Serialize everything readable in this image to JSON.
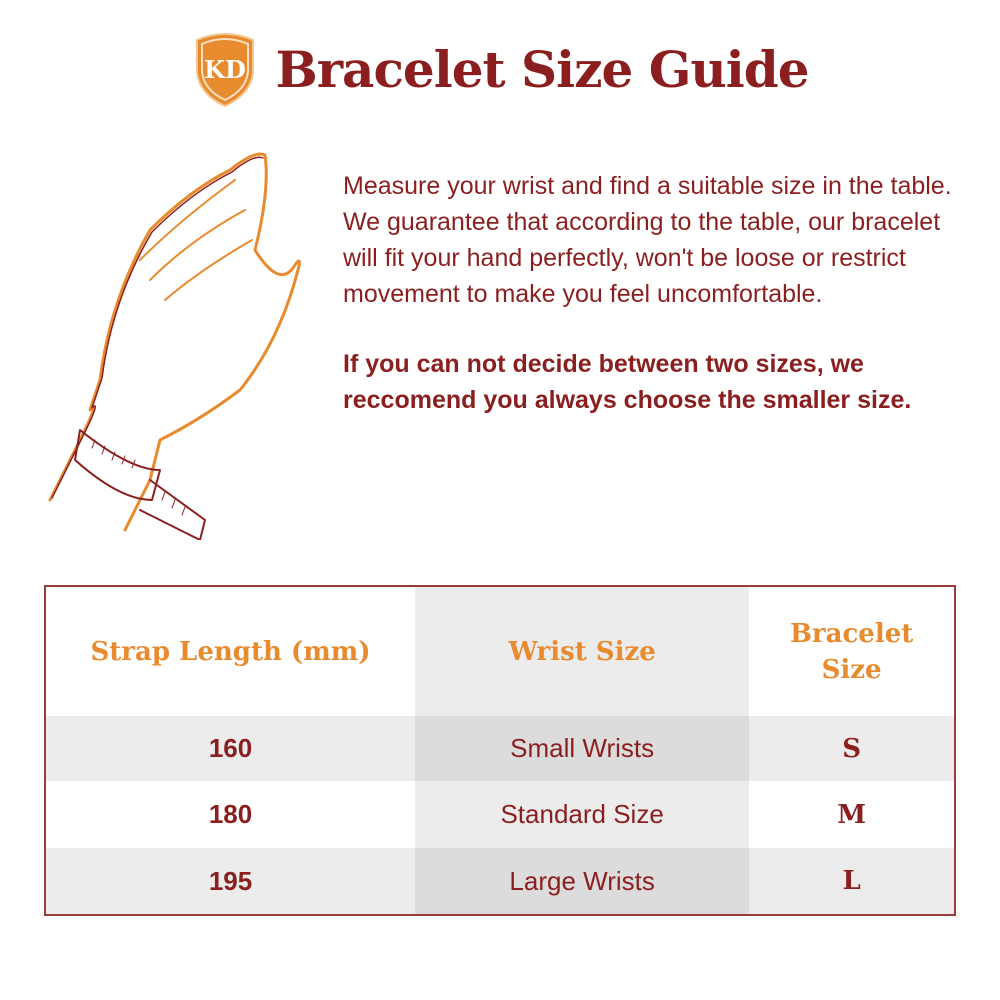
{
  "header": {
    "logo_text": "KD",
    "title": "Bracelet Size Guide"
  },
  "colors": {
    "brand_red": "#8b1f1f",
    "accent_orange": "#e88a2e"
  },
  "illustration": {
    "icon": "hand-with-measuring-tape-icon"
  },
  "description": {
    "line1": "Measure your wrist and find a suitable size in the table.",
    "line2": "We guarantee that according to the table, our bracelet will fit your hand perfectly, won't be loose or restrict movement to make you feel uncomfortable.",
    "advice": "If you can not decide between two sizes, we reccomend you always choose the smaller size."
  },
  "table": {
    "headers": [
      "Strap Length (mm)",
      "Wrist Size",
      "Bracelet Size"
    ],
    "rows": [
      [
        "160",
        "Small Wrists",
        "S"
      ],
      [
        "180",
        "Standard Size",
        "M"
      ],
      [
        "195",
        "Large Wrists",
        "L"
      ]
    ]
  }
}
